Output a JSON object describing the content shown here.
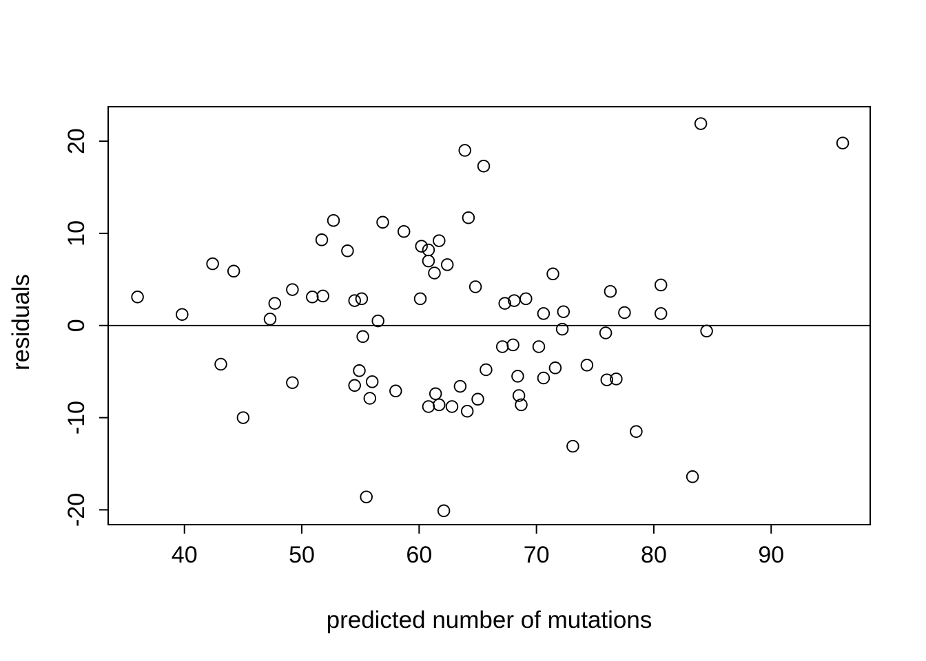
{
  "chart_data": {
    "type": "scatter",
    "title": "",
    "xlabel": "predicted number of mutations",
    "ylabel": "residuals",
    "xlim": [
      33.5,
      98.44
    ],
    "ylim": [
      -21.61,
      23.74
    ],
    "x_ticks": [
      40,
      50,
      60,
      70,
      80,
      90
    ],
    "y_ticks": [
      -20,
      -10,
      0,
      10,
      20
    ],
    "grid": false,
    "legend": null,
    "hline_y": 0,
    "marker": "open-circle",
    "colors": {
      "points": "#000000",
      "axis": "#000000",
      "zero_line": "#000000",
      "background": "#ffffff"
    },
    "points": [
      [
        36.0,
        3.1
      ],
      [
        39.8,
        1.2
      ],
      [
        42.4,
        6.7
      ],
      [
        43.1,
        -4.2
      ],
      [
        44.2,
        5.9
      ],
      [
        45.0,
        -10.0
      ],
      [
        47.3,
        0.7
      ],
      [
        47.7,
        2.4
      ],
      [
        49.2,
        3.9
      ],
      [
        49.2,
        -6.2
      ],
      [
        50.9,
        3.1
      ],
      [
        51.7,
        9.3
      ],
      [
        51.8,
        3.2
      ],
      [
        52.7,
        11.4
      ],
      [
        53.9,
        8.1
      ],
      [
        54.5,
        2.7
      ],
      [
        54.5,
        -6.5
      ],
      [
        54.9,
        -4.9
      ],
      [
        55.1,
        2.9
      ],
      [
        55.2,
        -1.2
      ],
      [
        55.5,
        -18.6
      ],
      [
        55.8,
        -7.9
      ],
      [
        56.0,
        -6.1
      ],
      [
        56.5,
        0.5
      ],
      [
        56.9,
        11.2
      ],
      [
        58.0,
        -7.1
      ],
      [
        58.7,
        10.2
      ],
      [
        60.1,
        2.9
      ],
      [
        60.2,
        8.6
      ],
      [
        60.8,
        8.2
      ],
      [
        60.8,
        7.0
      ],
      [
        60.8,
        -8.8
      ],
      [
        61.3,
        5.7
      ],
      [
        61.4,
        -7.4
      ],
      [
        61.7,
        9.2
      ],
      [
        61.7,
        -8.6
      ],
      [
        62.1,
        -20.1
      ],
      [
        62.4,
        6.6
      ],
      [
        62.8,
        -8.8
      ],
      [
        63.5,
        -6.6
      ],
      [
        63.9,
        19.0
      ],
      [
        64.1,
        -9.3
      ],
      [
        64.2,
        11.7
      ],
      [
        64.8,
        4.2
      ],
      [
        65.0,
        -8.0
      ],
      [
        65.5,
        17.3
      ],
      [
        65.7,
        -4.8
      ],
      [
        67.1,
        -2.3
      ],
      [
        67.3,
        2.4
      ],
      [
        68.0,
        -2.1
      ],
      [
        68.1,
        2.7
      ],
      [
        68.4,
        -5.5
      ],
      [
        68.5,
        -7.6
      ],
      [
        68.7,
        -8.6
      ],
      [
        69.1,
        2.9
      ],
      [
        70.2,
        -2.3
      ],
      [
        70.6,
        1.3
      ],
      [
        70.6,
        -5.7
      ],
      [
        71.4,
        5.6
      ],
      [
        71.6,
        -4.6
      ],
      [
        72.2,
        -0.4
      ],
      [
        72.3,
        1.5
      ],
      [
        73.1,
        -13.1
      ],
      [
        74.3,
        -4.3
      ],
      [
        75.9,
        -0.8
      ],
      [
        76.0,
        -5.9
      ],
      [
        76.3,
        3.7
      ],
      [
        76.8,
        -5.8
      ],
      [
        77.5,
        1.4
      ],
      [
        78.5,
        -11.5
      ],
      [
        80.6,
        4.4
      ],
      [
        80.6,
        1.3
      ],
      [
        83.3,
        -16.4
      ],
      [
        84.0,
        21.9
      ],
      [
        84.5,
        -0.6
      ],
      [
        96.1,
        19.8
      ]
    ]
  }
}
